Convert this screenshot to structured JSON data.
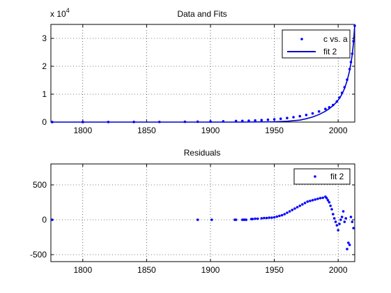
{
  "chart_data": [
    {
      "type": "scatter+line",
      "title": "Data and Fits",
      "xlim": [
        1775,
        2013
      ],
      "ylim": [
        0,
        35000
      ],
      "y_exponent_label": "x 10",
      "y_exponent_power": "4",
      "xticks": [
        1800,
        1850,
        1900,
        1950,
        2000
      ],
      "xtick_labels": [
        "1800",
        "1850",
        "1900",
        "1950",
        "2000"
      ],
      "yticks": [
        0,
        10000,
        20000,
        30000
      ],
      "ytick_labels": [
        "0",
        "1",
        "2",
        "3"
      ],
      "grid": true,
      "legend_position": "top-right",
      "series": [
        {
          "name": "c vs. a",
          "style": "points",
          "color": "#0000ff",
          "x": [
            1776,
            1800,
            1820,
            1840,
            1860,
            1880,
            1890,
            1900,
            1910,
            1920,
            1925,
            1930,
            1935,
            1940,
            1945,
            1950,
            1955,
            1960,
            1965,
            1970,
            1975,
            1980,
            1985,
            1990,
            1993,
            1996,
            1999,
            2001,
            2003,
            2005,
            2007,
            2009,
            2010,
            2011,
            2012,
            2013
          ],
          "y": [
            5,
            10,
            20,
            35,
            60,
            100,
            140,
            200,
            280,
            380,
            440,
            500,
            580,
            700,
            840,
            1000,
            1200,
            1450,
            1750,
            2100,
            2550,
            3100,
            3800,
            4700,
            5300,
            6100,
            7400,
            8800,
            10500,
            12500,
            15200,
            19000,
            21500,
            24500,
            29000,
            34500
          ]
        },
        {
          "name": "fit 2",
          "style": "line",
          "color": "#0000cc",
          "x": [
            1775,
            1800,
            1825,
            1850,
            1875,
            1900,
            1925,
            1950,
            1960,
            1970,
            1975,
            1980,
            1985,
            1990,
            1993,
            1996,
            1999,
            2001,
            2003,
            2005,
            2007,
            2009,
            2010,
            2011,
            2012,
            2013
          ],
          "y": [
            0,
            0,
            0,
            0,
            0,
            0,
            0,
            100,
            300,
            700,
            1200,
            1800,
            2700,
            3900,
            4800,
            5900,
            7300,
            8500,
            10000,
            12000,
            14800,
            18500,
            21000,
            24000,
            28500,
            35000
          ]
        }
      ]
    },
    {
      "type": "scatter",
      "title": "Residuals",
      "xlim": [
        1775,
        2013
      ],
      "ylim": [
        -600,
        800
      ],
      "xticks": [
        1800,
        1850,
        1900,
        1950,
        2000
      ],
      "xtick_labels": [
        "1800",
        "1850",
        "1900",
        "1950",
        "2000"
      ],
      "yticks": [
        -500,
        0,
        500
      ],
      "ytick_labels": [
        "-500",
        "0",
        "500"
      ],
      "grid": true,
      "legend_position": "top-right",
      "series": [
        {
          "name": "fit 2",
          "color": "#0000ff",
          "x": [
            1776,
            1890,
            1901,
            1919,
            1920,
            1925,
            1926,
            1927,
            1928,
            1932,
            1933,
            1935,
            1937,
            1940,
            1942,
            1944,
            1946,
            1948,
            1950,
            1952,
            1954,
            1956,
            1958,
            1960,
            1962,
            1964,
            1966,
            1968,
            1970,
            1972,
            1974,
            1976,
            1978,
            1980,
            1982,
            1984,
            1986,
            1988,
            1990,
            1991,
            1992,
            1993,
            1994,
            1995,
            1996,
            1997,
            1998,
            1999,
            2000,
            2001,
            2002,
            2003,
            2004,
            2005,
            2006,
            2007,
            2008,
            2009,
            2010,
            2011,
            2012
          ],
          "y": [
            0,
            0,
            0,
            0,
            0,
            0,
            0,
            0,
            0,
            10,
            10,
            15,
            15,
            20,
            25,
            25,
            30,
            30,
            35,
            45,
            55,
            65,
            80,
            100,
            120,
            140,
            160,
            180,
            200,
            220,
            240,
            260,
            270,
            280,
            290,
            300,
            310,
            315,
            330,
            310,
            280,
            250,
            200,
            150,
            80,
            20,
            -30,
            -80,
            -150,
            -60,
            0,
            40,
            120,
            -30,
            20,
            -420,
            -330,
            -360,
            40,
            -30,
            -120
          ]
        }
      ]
    }
  ]
}
